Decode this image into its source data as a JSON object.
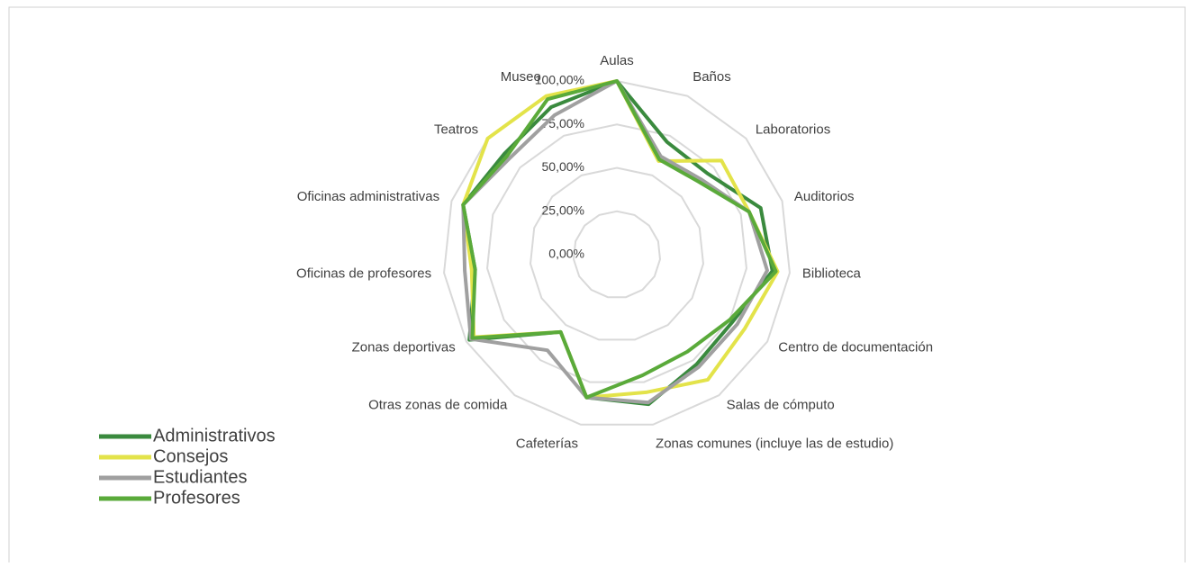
{
  "chart_data": {
    "type": "radar",
    "categories": [
      "Aulas",
      "Baños",
      "Laboratorios",
      "Auditorios",
      "Biblioteca",
      "Centro de documentación",
      "Salas de cómputo",
      "Zonas comunes (incluye las de estudio)",
      "Cafeterías",
      "Otras zonas de comida",
      "Zonas deportivas",
      "Oficinas de profesores",
      "Oficinas administrativas",
      "Teatros",
      "Museo"
    ],
    "series": [
      {
        "name": "Administrativos",
        "color": "#3a8a3e",
        "values": [
          100,
          71,
          70,
          87,
          90,
          77,
          78,
          88,
          84,
          55,
          98,
          82,
          93,
          87,
          93
        ]
      },
      {
        "name": "Consejos",
        "color": "#e3e34a",
        "values": [
          100,
          59,
          81,
          80,
          93,
          85,
          89,
          81,
          84,
          55,
          95,
          84,
          93,
          100,
          100
        ]
      },
      {
        "name": "Estudiantes",
        "color": "#a0a0a0",
        "values": [
          100,
          62,
          65,
          80,
          87,
          80,
          80,
          87,
          84,
          68,
          97,
          88,
          93,
          83,
          88
        ]
      },
      {
        "name": "Profesores",
        "color": "#5aaa3a",
        "values": [
          100,
          60,
          63,
          80,
          92,
          75,
          69,
          71,
          84,
          55,
          96,
          82,
          93,
          85,
          98
        ]
      }
    ],
    "ylim": [
      0,
      100
    ],
    "yticks": [
      {
        "value": 0,
        "label": "0,00%"
      },
      {
        "value": 25,
        "label": "25,00%"
      },
      {
        "value": 50,
        "label": "50,00%"
      },
      {
        "value": 75,
        "label": "75,00%"
      },
      {
        "value": 100,
        "label": "100,00%"
      }
    ],
    "grid": true,
    "legend": "bottom-left"
  }
}
